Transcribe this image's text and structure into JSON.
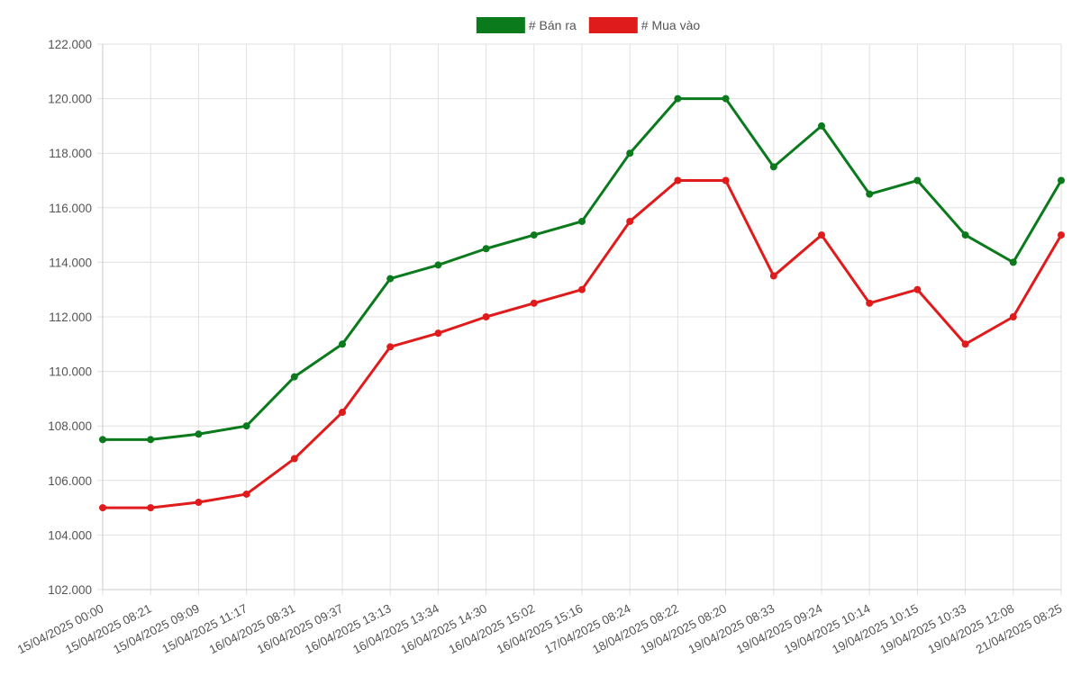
{
  "chart_data": {
    "type": "line",
    "title": "",
    "xlabel": "",
    "ylabel": "",
    "legend_position": "top-center",
    "grid": true,
    "ylim": [
      102000,
      122000
    ],
    "y_ticks": [
      "102.000",
      "104.000",
      "106.000",
      "108.000",
      "110.000",
      "112.000",
      "114.000",
      "116.000",
      "118.000",
      "120.000",
      "122.000"
    ],
    "categories": [
      "15/04/2025 00:00",
      "15/04/2025 08:21",
      "15/04/2025 09:09",
      "15/04/2025 11:17",
      "16/04/2025 08:31",
      "16/04/2025 09:37",
      "16/04/2025 13:13",
      "16/04/2025 13:34",
      "16/04/2025 14:30",
      "16/04/2025 15:02",
      "16/04/2025 15:16",
      "17/04/2025 08:24",
      "18/04/2025 08:22",
      "19/04/2025 08:20",
      "19/04/2025 08:33",
      "19/04/2025 09:24",
      "19/04/2025 10:14",
      "19/04/2025 10:15",
      "19/04/2025 10:33",
      "19/04/2025 12:08",
      "21/04/2025 08:25"
    ],
    "series": [
      {
        "name": "# Bán ra",
        "color": "#0a7a1c",
        "values": [
          107500,
          107500,
          107700,
          108000,
          109800,
          111000,
          113400,
          113900,
          114500,
          115000,
          115500,
          118000,
          120000,
          120000,
          117500,
          119000,
          116500,
          117000,
          115000,
          114000,
          117000
        ]
      },
      {
        "name": "# Mua vào",
        "color": "#e01b1b",
        "values": [
          105000,
          105000,
          105200,
          105500,
          106800,
          108500,
          110900,
          111400,
          112000,
          112500,
          113000,
          115500,
          117000,
          117000,
          113500,
          115000,
          112500,
          113000,
          111000,
          112000,
          115000
        ]
      }
    ]
  }
}
